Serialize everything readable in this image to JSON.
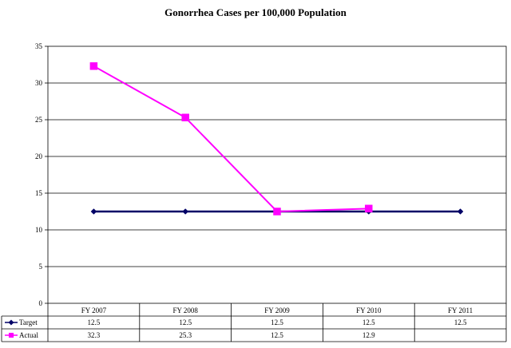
{
  "chart_data": {
    "type": "line",
    "title": "Gonorrhea Cases per 100,000 Population",
    "categories": [
      "FY 2007",
      "FY 2008",
      "FY 2009",
      "FY 2010",
      "FY 2011"
    ],
    "ylim": [
      0,
      35
    ],
    "yticks": [
      0,
      5,
      10,
      15,
      20,
      25,
      30,
      35
    ],
    "grid": true,
    "legend": "data-table-left",
    "series": [
      {
        "name": "Target",
        "color": "#000066",
        "marker": "diamond",
        "values": [
          12.5,
          12.5,
          12.5,
          12.5,
          12.5
        ],
        "labels": [
          "12.5",
          "12.5",
          "12.5",
          "12.5",
          "12.5"
        ]
      },
      {
        "name": "Actual",
        "color": "#ff00ff",
        "marker": "square",
        "values": [
          32.3,
          25.3,
          12.5,
          12.9,
          null
        ],
        "labels": [
          "32.3",
          "25.3",
          "12.5",
          "12.9",
          ""
        ]
      }
    ]
  }
}
